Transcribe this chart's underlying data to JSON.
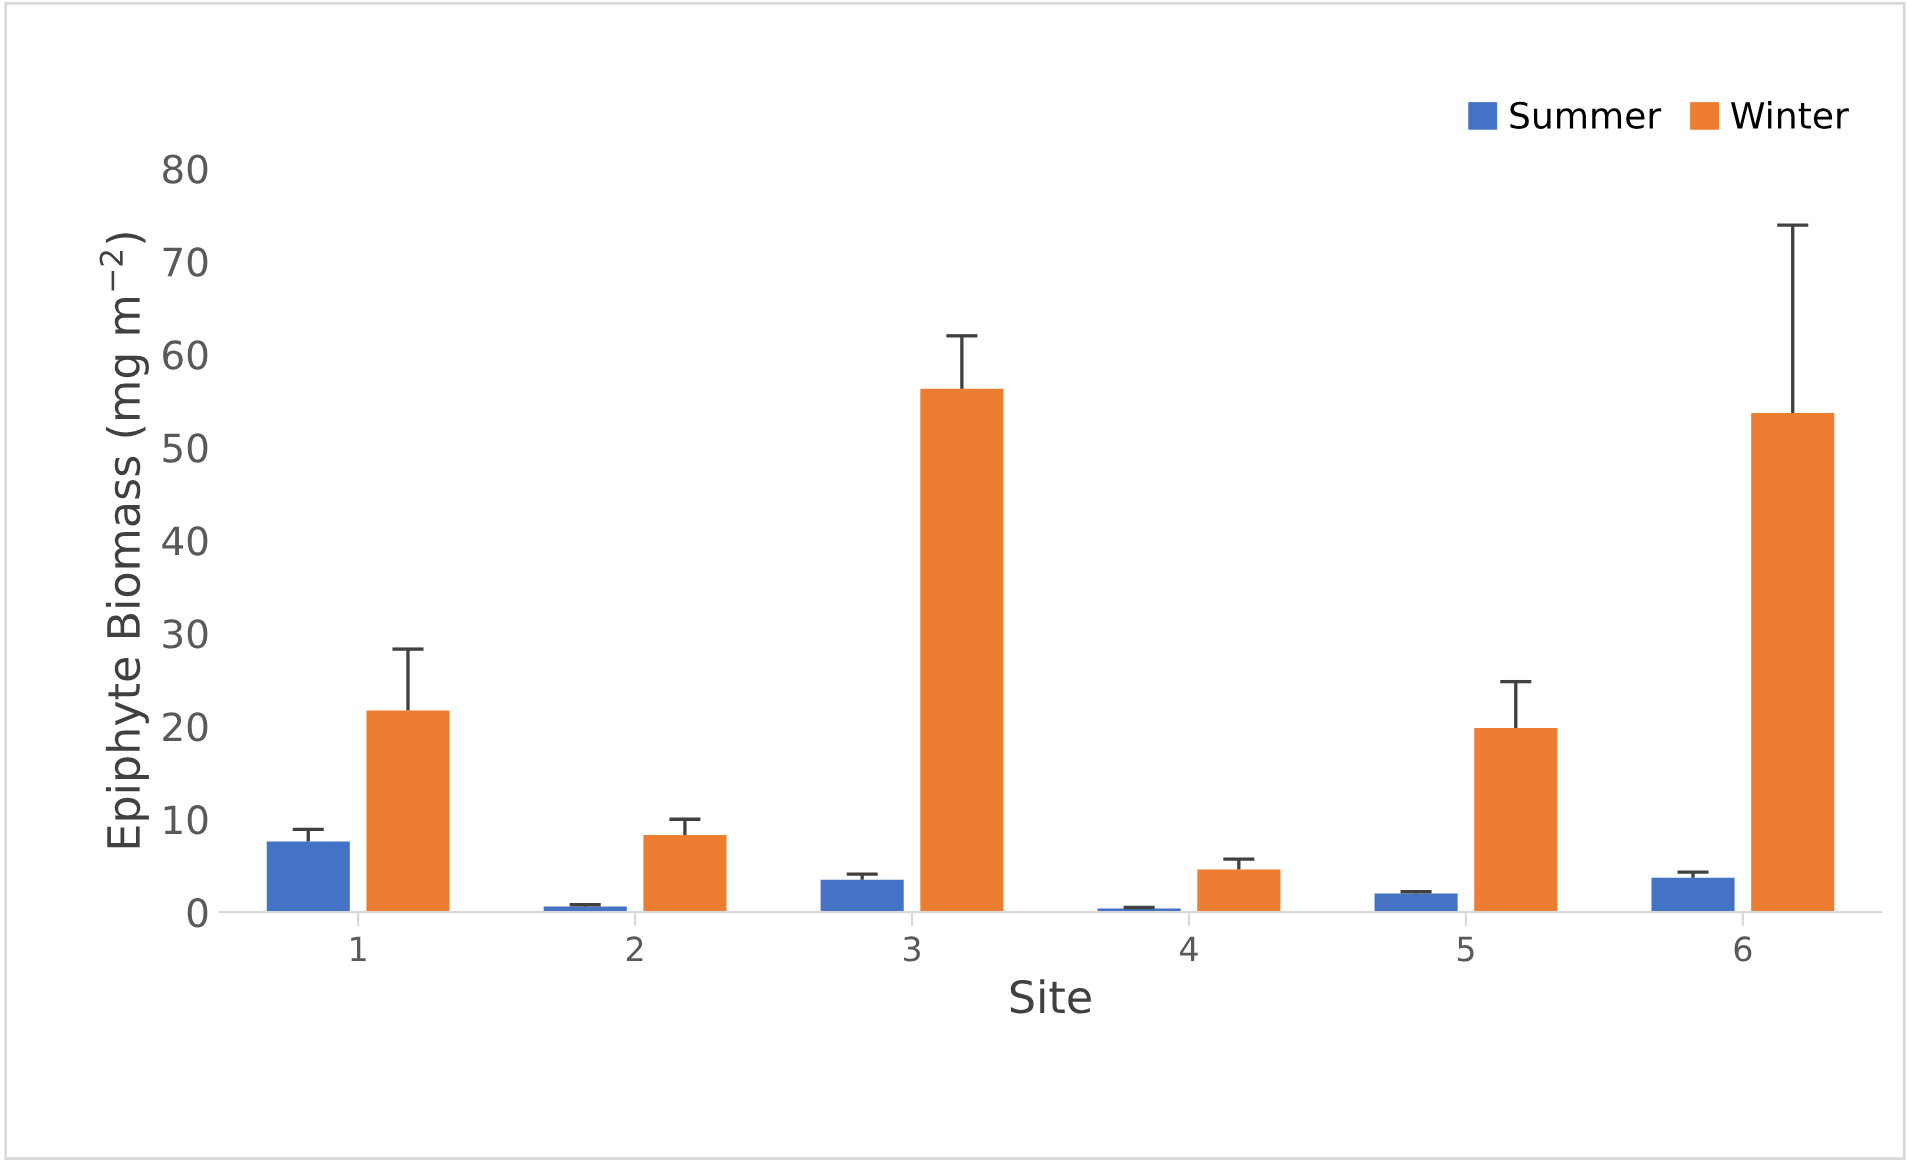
{
  "chart_data": {
    "type": "bar",
    "xlabel": "Site",
    "ylabel": "Epiphyte Biomass (mg m$^{−2}$)",
    "categories": [
      "1",
      "2",
      "3",
      "4",
      "5",
      "6"
    ],
    "series": [
      {
        "name": "Summer",
        "color": "#4472c4",
        "values": [
          7.6,
          0.6,
          3.5,
          0.4,
          2.0,
          3.7
        ],
        "errors": [
          [
            7.6,
            8.9
          ],
          [
            0.6,
            0.8
          ],
          [
            3.5,
            4.1
          ],
          [
            0.4,
            0.5
          ],
          [
            2.0,
            2.2
          ],
          [
            3.7,
            4.3
          ]
        ]
      },
      {
        "name": "Winter",
        "color": "#ed7d31",
        "values": [
          21.7,
          8.3,
          56.3,
          4.6,
          19.8,
          53.7
        ],
        "errors": [
          [
            21.7,
            28.3
          ],
          [
            8.3,
            10.0
          ],
          [
            56.3,
            62.0
          ],
          [
            4.6,
            5.7
          ],
          [
            19.8,
            24.8
          ],
          [
            53.7,
            73.9
          ]
        ]
      }
    ],
    "ylim": [
      0,
      80
    ],
    "yticks": [
      0,
      10,
      20,
      30,
      40,
      50,
      60,
      70,
      80
    ],
    "grid": false,
    "legend": "top right"
  }
}
